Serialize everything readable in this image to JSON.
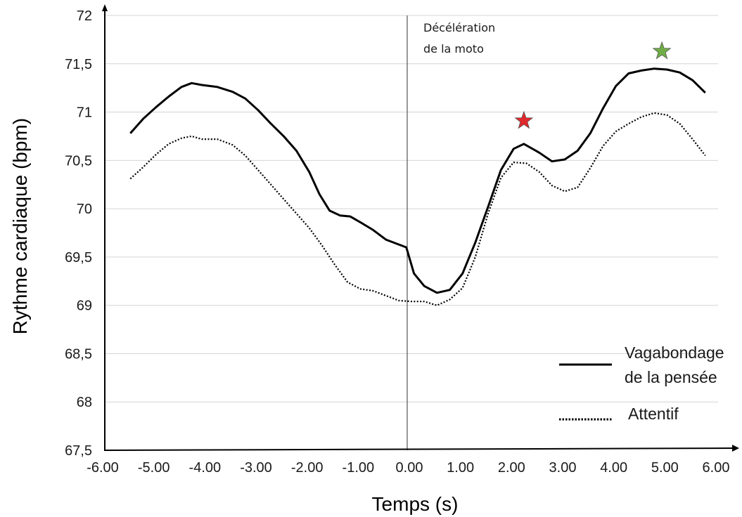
{
  "chart_data": {
    "type": "line",
    "title": "",
    "xlabel": "Temps (s)",
    "ylabel": "Rythme cardiaque (bpm)",
    "xlim": [
      -6,
      6
    ],
    "ylim": [
      67.5,
      72
    ],
    "x_ticks": [
      -6,
      -5,
      -4,
      -3,
      -2,
      -1,
      0,
      1,
      2,
      3,
      4,
      5,
      6
    ],
    "x_tick_labels": [
      "-6.00",
      "-5.00",
      "-4.00",
      "-3.00",
      "-2.00",
      "-1.00",
      "0.00",
      "1.00",
      "2.00",
      "3.00",
      "4.00",
      "5.00",
      "6.00"
    ],
    "y_ticks": [
      67.5,
      68,
      68.5,
      69,
      69.5,
      70,
      70.5,
      71,
      71.5,
      72
    ],
    "y_tick_labels": [
      "67,5",
      "68",
      "68,5",
      "69",
      "69,5",
      "70",
      "70,5",
      "71",
      "71,5",
      "72"
    ],
    "grid": "horizontal",
    "legend_position": "bottom-right",
    "series": [
      {
        "name": "Vagabondage de la pensée",
        "style": "solid",
        "color": "#000000",
        "points": [
          [
            -5.5,
            70.78
          ],
          [
            -5.25,
            70.93
          ],
          [
            -5.0,
            71.05
          ],
          [
            -4.75,
            71.16
          ],
          [
            -4.5,
            71.26
          ],
          [
            -4.3,
            71.3
          ],
          [
            -4.1,
            71.28
          ],
          [
            -3.8,
            71.26
          ],
          [
            -3.5,
            71.21
          ],
          [
            -3.25,
            71.14
          ],
          [
            -3.0,
            71.02
          ],
          [
            -2.75,
            70.88
          ],
          [
            -2.5,
            70.75
          ],
          [
            -2.25,
            70.6
          ],
          [
            -2.0,
            70.38
          ],
          [
            -1.8,
            70.15
          ],
          [
            -1.6,
            69.98
          ],
          [
            -1.4,
            69.93
          ],
          [
            -1.2,
            69.92
          ],
          [
            -1.0,
            69.86
          ],
          [
            -0.75,
            69.78
          ],
          [
            -0.5,
            69.68
          ],
          [
            -0.1,
            69.6
          ],
          [
            0.05,
            69.33
          ],
          [
            0.25,
            69.2
          ],
          [
            0.5,
            69.13
          ],
          [
            0.75,
            69.16
          ],
          [
            1.0,
            69.33
          ],
          [
            1.25,
            69.65
          ],
          [
            1.5,
            70.02
          ],
          [
            1.75,
            70.4
          ],
          [
            2.0,
            70.62
          ],
          [
            2.2,
            70.67
          ],
          [
            2.5,
            70.58
          ],
          [
            2.75,
            70.49
          ],
          [
            3.0,
            70.51
          ],
          [
            3.25,
            70.6
          ],
          [
            3.5,
            70.78
          ],
          [
            3.75,
            71.04
          ],
          [
            4.0,
            71.27
          ],
          [
            4.25,
            71.4
          ],
          [
            4.5,
            71.43
          ],
          [
            4.75,
            71.45
          ],
          [
            5.0,
            71.44
          ],
          [
            5.25,
            71.41
          ],
          [
            5.5,
            71.33
          ],
          [
            5.75,
            71.2
          ]
        ]
      },
      {
        "name": "Attentif",
        "style": "dotted",
        "color": "#000000",
        "points": [
          [
            -5.5,
            70.31
          ],
          [
            -5.25,
            70.43
          ],
          [
            -5.0,
            70.56
          ],
          [
            -4.75,
            70.67
          ],
          [
            -4.5,
            70.73
          ],
          [
            -4.3,
            70.75
          ],
          [
            -4.1,
            70.72
          ],
          [
            -3.8,
            70.72
          ],
          [
            -3.5,
            70.66
          ],
          [
            -3.25,
            70.55
          ],
          [
            -3.0,
            70.4
          ],
          [
            -2.75,
            70.25
          ],
          [
            -2.5,
            70.1
          ],
          [
            -2.25,
            69.95
          ],
          [
            -2.0,
            69.8
          ],
          [
            -1.75,
            69.62
          ],
          [
            -1.5,
            69.42
          ],
          [
            -1.25,
            69.24
          ],
          [
            -1.0,
            69.17
          ],
          [
            -0.75,
            69.15
          ],
          [
            -0.5,
            69.1
          ],
          [
            -0.25,
            69.05
          ],
          [
            0.0,
            69.04
          ],
          [
            0.25,
            69.04
          ],
          [
            0.5,
            69.0
          ],
          [
            0.75,
            69.06
          ],
          [
            1.0,
            69.18
          ],
          [
            1.25,
            69.5
          ],
          [
            1.5,
            69.95
          ],
          [
            1.75,
            70.32
          ],
          [
            2.0,
            70.48
          ],
          [
            2.25,
            70.47
          ],
          [
            2.5,
            70.38
          ],
          [
            2.75,
            70.24
          ],
          [
            3.0,
            70.18
          ],
          [
            3.25,
            70.22
          ],
          [
            3.5,
            70.42
          ],
          [
            3.75,
            70.65
          ],
          [
            4.0,
            70.8
          ],
          [
            4.25,
            70.88
          ],
          [
            4.5,
            70.95
          ],
          [
            4.75,
            70.99
          ],
          [
            5.0,
            70.97
          ],
          [
            5.25,
            70.88
          ],
          [
            5.5,
            70.72
          ],
          [
            5.75,
            70.55
          ]
        ]
      }
    ],
    "annotations": [
      {
        "text_lines": [
          "Décélération",
          "de la moto"
        ],
        "x": 0
      }
    ],
    "vertical_line": {
      "x": 0
    },
    "markers": [
      {
        "symbol": "star",
        "color": "#e0292d",
        "x": 2.2,
        "y": 70.91
      },
      {
        "symbol": "star",
        "color": "#70ad47",
        "x": 4.9,
        "y": 71.63
      }
    ]
  }
}
